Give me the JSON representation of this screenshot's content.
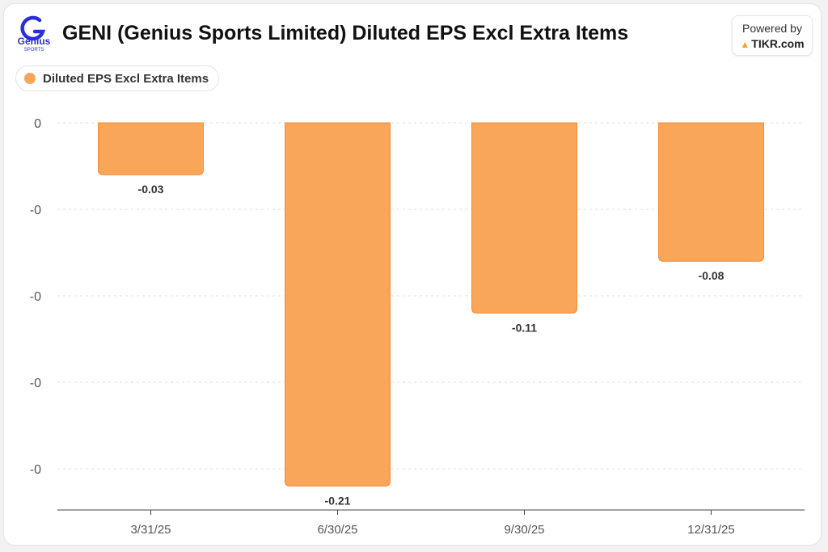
{
  "header": {
    "title": "GENI (Genius Sports Limited) Diluted EPS Excl Extra Items",
    "logo_text": "Genius",
    "logo_subtext": "SPORTS",
    "powered_by": "Powered by",
    "brand": "TIKR.com"
  },
  "colors": {
    "bar": "#f9a65a",
    "bar_stroke": "#f08a3a",
    "logo": "#2c2fd6"
  },
  "chart_data": {
    "type": "bar",
    "title": "GENI (Genius Sports Limited) Diluted EPS Excl Extra Items",
    "categories": [
      "3/31/25",
      "6/30/25",
      "9/30/25",
      "12/31/25"
    ],
    "series": [
      {
        "name": "Diluted EPS Excl Extra Items",
        "values": [
          -0.03,
          -0.21,
          -0.11,
          -0.08
        ]
      }
    ],
    "data_labels": [
      "-0.03",
      "-0.21",
      "-0.11",
      "-0.08"
    ],
    "ylim": [
      -0.22,
      0
    ],
    "y_ticks": [
      0,
      -0.05,
      -0.1,
      -0.15,
      -0.2
    ],
    "y_tick_labels": [
      "0",
      "-0",
      "-0",
      "-0",
      "-0"
    ],
    "grid": true,
    "legend": "top-left",
    "xlabel": "",
    "ylabel": ""
  }
}
